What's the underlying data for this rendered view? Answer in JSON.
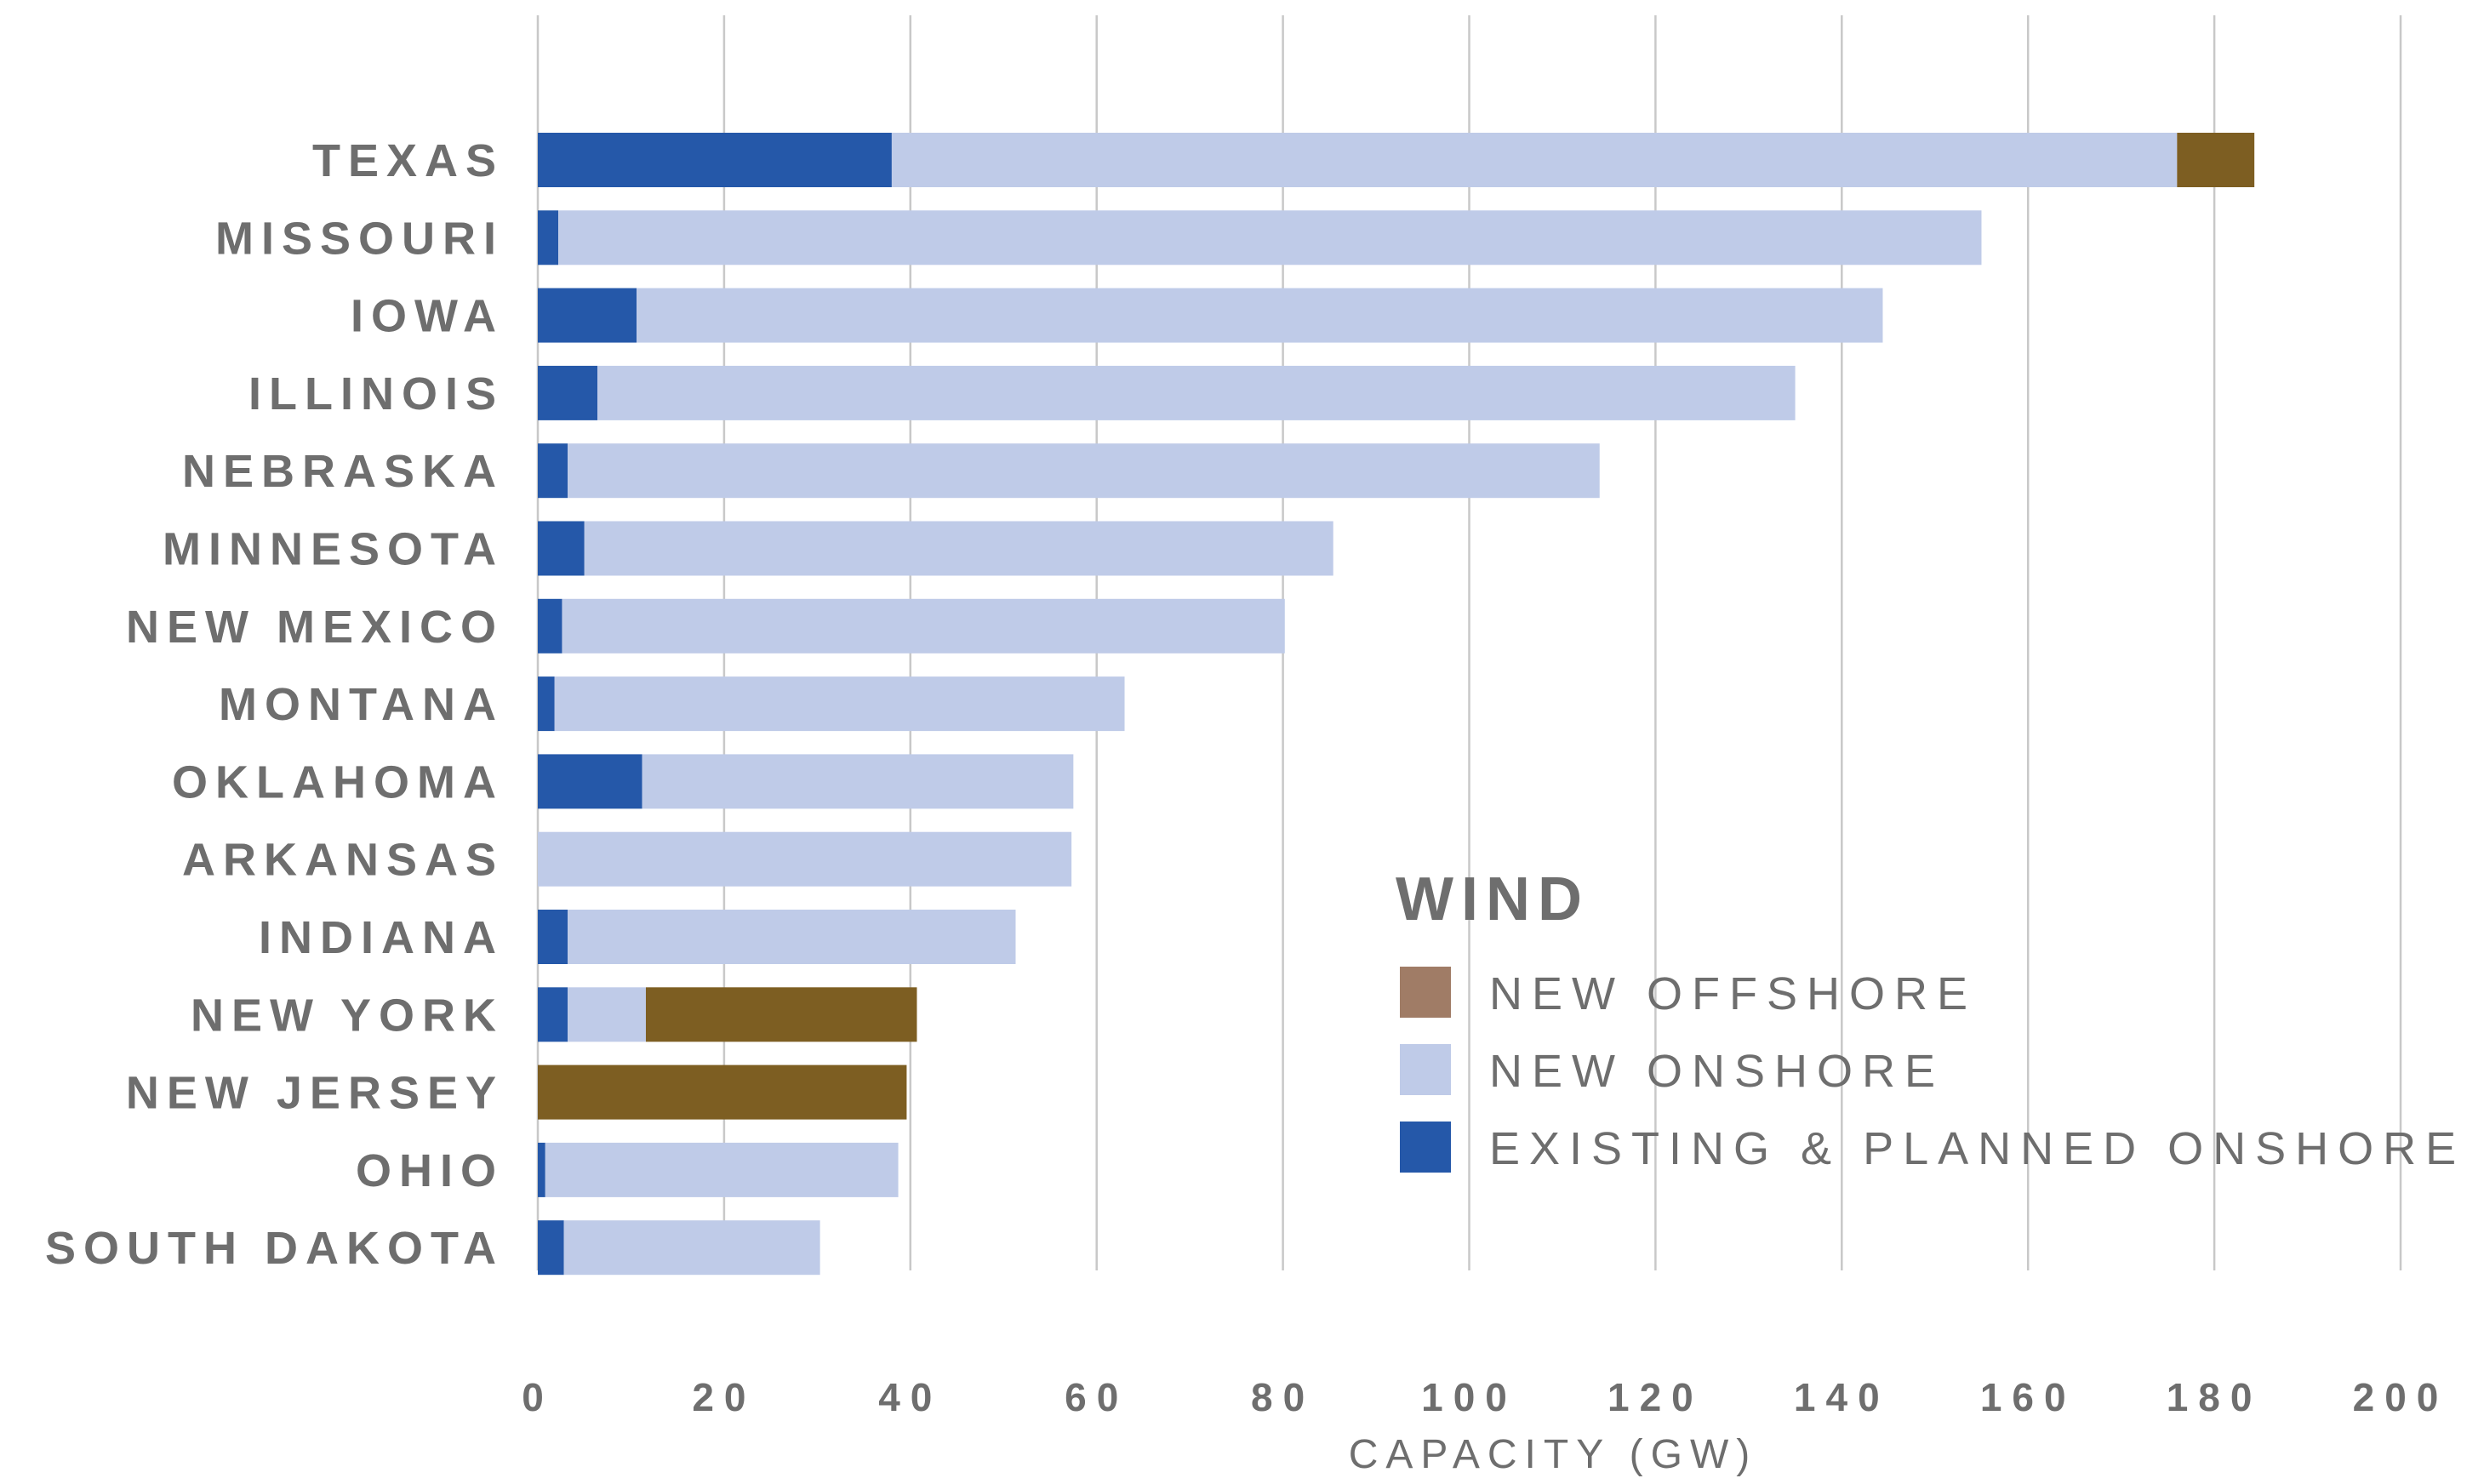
{
  "chart_data": {
    "type": "bar",
    "orientation": "horizontal",
    "stacked": true,
    "categories": [
      "TEXAS",
      "MISSOURI",
      "IOWA",
      "ILLINOIS",
      "NEBRASKA",
      "MINNESOTA",
      "NEW MEXICO",
      "MONTANA",
      "OKLAHOMA",
      "ARKANSAS",
      "INDIANA",
      "NEW YORK",
      "NEW JERSEY",
      "OHIO",
      "SOUTH DAKOTA"
    ],
    "series": [
      {
        "name": "EXISTING & PLANNED ONSHORE",
        "color": "#2558a9",
        "values": [
          38,
          2.2,
          10.6,
          6.4,
          3.2,
          5,
          2.6,
          1.8,
          11.2,
          0,
          3.2,
          3.2,
          0,
          0.8,
          2.8
        ]
      },
      {
        "name": "NEW ONSHORE",
        "color": "#bfcbe8",
        "values": [
          138,
          152.8,
          133.8,
          128.6,
          110.8,
          80.4,
          77.6,
          61.2,
          46.3,
          57.3,
          48.1,
          8.4,
          0,
          37.9,
          27.5
        ]
      },
      {
        "name": "NEW OFFSHORE",
        "color": "#7d5e22",
        "values": [
          8.3,
          0,
          0,
          0,
          0,
          0,
          0,
          0,
          0,
          0,
          0,
          29.1,
          39.6,
          0,
          0
        ]
      }
    ],
    "legend": {
      "title": "WIND",
      "placement": "lower-right",
      "order": [
        "NEW OFFSHORE",
        "NEW ONSHORE",
        "EXISTING & PLANNED ONSHORE"
      ],
      "swatch_colors": {
        "NEW OFFSHORE": "#a07c66",
        "NEW ONSHORE": "#bfcbe8",
        "EXISTING & PLANNED ONSHORE": "#2558a9"
      }
    },
    "xlabel": "CAPACITY (GW)",
    "ylabel": "",
    "title": "",
    "xlim": [
      0,
      200
    ],
    "xticks": [
      0,
      20,
      40,
      60,
      80,
      100,
      120,
      140,
      160,
      180,
      200
    ],
    "grid": "vertical",
    "grid_color": "#c8c8c8",
    "text_color": "#6e6e6e"
  }
}
